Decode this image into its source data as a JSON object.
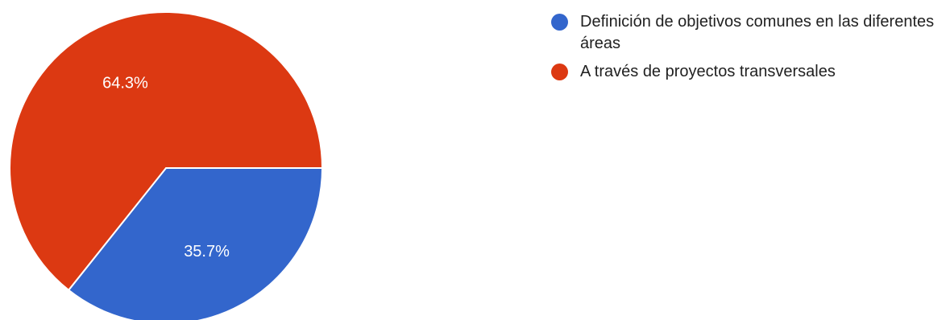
{
  "chart_data": {
    "type": "pie",
    "title": "",
    "legend_position": "right",
    "slices": [
      {
        "label": "Definición de objetivos comunes en las diferentes áreas",
        "value": 35.7,
        "display": "35.7%",
        "color": "#3366cc"
      },
      {
        "label": "A través de proyectos transversales",
        "value": 64.3,
        "display": "64.3%",
        "color": "#dc3912"
      }
    ]
  }
}
